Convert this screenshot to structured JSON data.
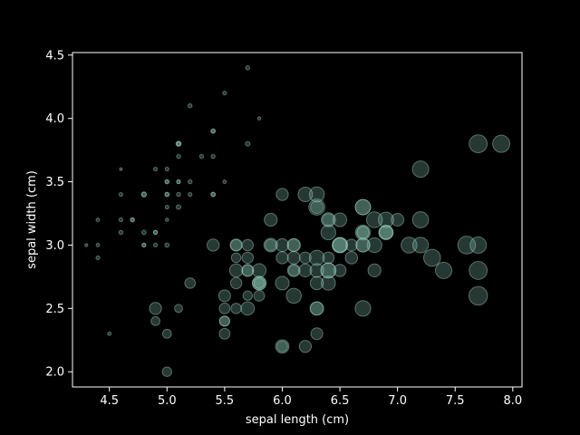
{
  "chart_data": {
    "type": "scatter",
    "title": "",
    "xlabel": "sepal length (cm)",
    "ylabel": "sepal width (cm)",
    "xlim": [
      4.18,
      8.08
    ],
    "ylim": [
      1.88,
      4.52
    ],
    "xticks": [
      4.5,
      5.0,
      5.5,
      6.0,
      6.5,
      7.0,
      7.5,
      8.0
    ],
    "xtick_labels": [
      "4.5",
      "5.0",
      "5.5",
      "6.0",
      "6.5",
      "7.0",
      "7.5",
      "8.0"
    ],
    "yticks": [
      2.0,
      2.5,
      3.0,
      3.5,
      4.0,
      4.5
    ],
    "ytick_labels": [
      "2.0",
      "2.5",
      "3.0",
      "3.5",
      "4.0",
      "4.5"
    ],
    "grid": false,
    "marker_color": "#7fb8a8",
    "marker_edge": "#a8d8c8",
    "background": "#000000",
    "size_encodes": "petal length (cm)",
    "points": [
      [
        5.1,
        3.5,
        1.4
      ],
      [
        4.9,
        3.0,
        1.4
      ],
      [
        4.7,
        3.2,
        1.3
      ],
      [
        4.6,
        3.1,
        1.5
      ],
      [
        5.0,
        3.6,
        1.4
      ],
      [
        5.4,
        3.9,
        1.7
      ],
      [
        4.6,
        3.4,
        1.4
      ],
      [
        5.0,
        3.4,
        1.5
      ],
      [
        4.4,
        2.9,
        1.4
      ],
      [
        4.9,
        3.1,
        1.5
      ],
      [
        5.4,
        3.7,
        1.5
      ],
      [
        4.8,
        3.4,
        1.6
      ],
      [
        4.8,
        3.0,
        1.4
      ],
      [
        4.3,
        3.0,
        1.1
      ],
      [
        5.8,
        4.0,
        1.2
      ],
      [
        5.7,
        4.4,
        1.5
      ],
      [
        5.4,
        3.9,
        1.3
      ],
      [
        5.1,
        3.5,
        1.4
      ],
      [
        5.7,
        3.8,
        1.7
      ],
      [
        5.1,
        3.8,
        1.5
      ],
      [
        5.4,
        3.4,
        1.7
      ],
      [
        5.1,
        3.7,
        1.5
      ],
      [
        4.6,
        3.6,
        1.0
      ],
      [
        5.1,
        3.3,
        1.7
      ],
      [
        4.8,
        3.4,
        1.9
      ],
      [
        5.0,
        3.0,
        1.6
      ],
      [
        5.0,
        3.4,
        1.6
      ],
      [
        5.2,
        3.5,
        1.5
      ],
      [
        5.2,
        3.4,
        1.4
      ],
      [
        4.7,
        3.2,
        1.6
      ],
      [
        4.8,
        3.1,
        1.6
      ],
      [
        5.4,
        3.4,
        1.5
      ],
      [
        5.2,
        4.1,
        1.5
      ],
      [
        5.5,
        4.2,
        1.4
      ],
      [
        4.9,
        3.1,
        1.5
      ],
      [
        5.0,
        3.2,
        1.2
      ],
      [
        5.5,
        3.5,
        1.3
      ],
      [
        4.9,
        3.6,
        1.4
      ],
      [
        4.4,
        3.0,
        1.3
      ],
      [
        5.1,
        3.4,
        1.5
      ],
      [
        5.0,
        3.5,
        1.3
      ],
      [
        4.5,
        2.3,
        1.3
      ],
      [
        4.4,
        3.2,
        1.3
      ],
      [
        5.0,
        3.5,
        1.6
      ],
      [
        5.1,
        3.8,
        1.9
      ],
      [
        4.8,
        3.0,
        1.4
      ],
      [
        5.1,
        3.8,
        1.6
      ],
      [
        4.6,
        3.2,
        1.4
      ],
      [
        5.3,
        3.7,
        1.5
      ],
      [
        5.0,
        3.3,
        1.4
      ],
      [
        7.0,
        3.2,
        4.7
      ],
      [
        6.4,
        3.2,
        4.5
      ],
      [
        6.9,
        3.1,
        4.9
      ],
      [
        5.5,
        2.3,
        4.0
      ],
      [
        6.5,
        2.8,
        4.6
      ],
      [
        5.7,
        2.8,
        4.5
      ],
      [
        6.3,
        3.3,
        4.7
      ],
      [
        4.9,
        2.4,
        3.3
      ],
      [
        6.6,
        2.9,
        4.6
      ],
      [
        5.2,
        2.7,
        3.9
      ],
      [
        5.0,
        2.0,
        3.5
      ],
      [
        5.9,
        3.0,
        4.2
      ],
      [
        6.0,
        2.2,
        4.0
      ],
      [
        6.1,
        2.9,
        4.7
      ],
      [
        5.6,
        2.9,
        3.6
      ],
      [
        6.7,
        3.1,
        4.4
      ],
      [
        5.6,
        3.0,
        4.5
      ],
      [
        5.8,
        2.7,
        4.1
      ],
      [
        6.2,
        2.2,
        4.5
      ],
      [
        5.6,
        2.5,
        3.9
      ],
      [
        5.9,
        3.2,
        4.8
      ],
      [
        6.1,
        2.8,
        4.0
      ],
      [
        6.3,
        2.5,
        4.9
      ],
      [
        6.1,
        2.8,
        4.7
      ],
      [
        6.4,
        2.9,
        4.3
      ],
      [
        6.6,
        3.0,
        4.4
      ],
      [
        6.8,
        2.8,
        4.8
      ],
      [
        6.7,
        3.0,
        5.0
      ],
      [
        6.0,
        2.9,
        4.5
      ],
      [
        5.7,
        2.6,
        3.5
      ],
      [
        5.5,
        2.4,
        3.8
      ],
      [
        5.5,
        2.4,
        3.7
      ],
      [
        5.8,
        2.7,
        3.9
      ],
      [
        6.0,
        2.7,
        5.1
      ],
      [
        5.4,
        3.0,
        4.5
      ],
      [
        6.0,
        3.4,
        4.5
      ],
      [
        6.7,
        3.1,
        4.7
      ],
      [
        6.3,
        2.3,
        4.4
      ],
      [
        5.6,
        3.0,
        4.1
      ],
      [
        5.5,
        2.5,
        4.0
      ],
      [
        5.5,
        2.6,
        4.4
      ],
      [
        6.1,
        3.0,
        4.6
      ],
      [
        5.8,
        2.6,
        4.0
      ],
      [
        5.0,
        2.3,
        3.3
      ],
      [
        5.6,
        2.7,
        4.2
      ],
      [
        5.7,
        3.0,
        4.2
      ],
      [
        5.7,
        2.9,
        4.2
      ],
      [
        6.2,
        2.9,
        4.3
      ],
      [
        5.1,
        2.5,
        3.0
      ],
      [
        5.7,
        2.8,
        4.1
      ],
      [
        6.3,
        3.3,
        6.0
      ],
      [
        5.8,
        2.7,
        5.1
      ],
      [
        7.1,
        3.0,
        5.9
      ],
      [
        6.3,
        2.9,
        5.6
      ],
      [
        6.5,
        3.0,
        5.8
      ],
      [
        7.6,
        3.0,
        6.6
      ],
      [
        4.9,
        2.5,
        4.5
      ],
      [
        7.3,
        2.9,
        6.3
      ],
      [
        6.7,
        2.5,
        5.8
      ],
      [
        7.2,
        3.6,
        6.1
      ],
      [
        6.5,
        3.2,
        5.1
      ],
      [
        6.4,
        2.7,
        5.3
      ],
      [
        6.8,
        3.0,
        5.5
      ],
      [
        5.7,
        2.5,
        5.0
      ],
      [
        5.8,
        2.8,
        5.1
      ],
      [
        6.4,
        3.2,
        5.3
      ],
      [
        6.5,
        3.0,
        5.5
      ],
      [
        7.7,
        3.8,
        6.7
      ],
      [
        7.7,
        2.6,
        6.9
      ],
      [
        6.0,
        2.2,
        5.0
      ],
      [
        6.9,
        3.2,
        5.7
      ],
      [
        5.6,
        2.8,
        4.9
      ],
      [
        7.7,
        2.8,
        6.7
      ],
      [
        6.3,
        2.7,
        4.9
      ],
      [
        6.7,
        3.3,
        5.7
      ],
      [
        7.2,
        3.2,
        6.0
      ],
      [
        6.2,
        2.8,
        4.8
      ],
      [
        6.1,
        3.0,
        4.9
      ],
      [
        6.4,
        2.8,
        5.6
      ],
      [
        7.2,
        3.0,
        5.8
      ],
      [
        7.4,
        2.8,
        6.1
      ],
      [
        7.9,
        3.8,
        6.4
      ],
      [
        6.4,
        2.8,
        5.6
      ],
      [
        6.3,
        2.8,
        5.1
      ],
      [
        6.1,
        2.6,
        5.6
      ],
      [
        7.7,
        3.0,
        6.1
      ],
      [
        6.3,
        3.4,
        5.6
      ],
      [
        6.4,
        3.1,
        5.5
      ],
      [
        6.0,
        3.0,
        4.8
      ],
      [
        6.9,
        3.1,
        5.4
      ],
      [
        6.7,
        3.1,
        5.6
      ],
      [
        6.9,
        3.1,
        5.1
      ],
      [
        5.8,
        2.7,
        5.1
      ],
      [
        6.8,
        3.2,
        5.9
      ],
      [
        6.7,
        3.3,
        5.7
      ],
      [
        6.7,
        3.0,
        5.2
      ],
      [
        6.3,
        2.5,
        5.0
      ],
      [
        6.5,
        3.0,
        5.2
      ],
      [
        6.2,
        3.4,
        5.4
      ],
      [
        5.9,
        3.0,
        5.1
      ]
    ]
  }
}
